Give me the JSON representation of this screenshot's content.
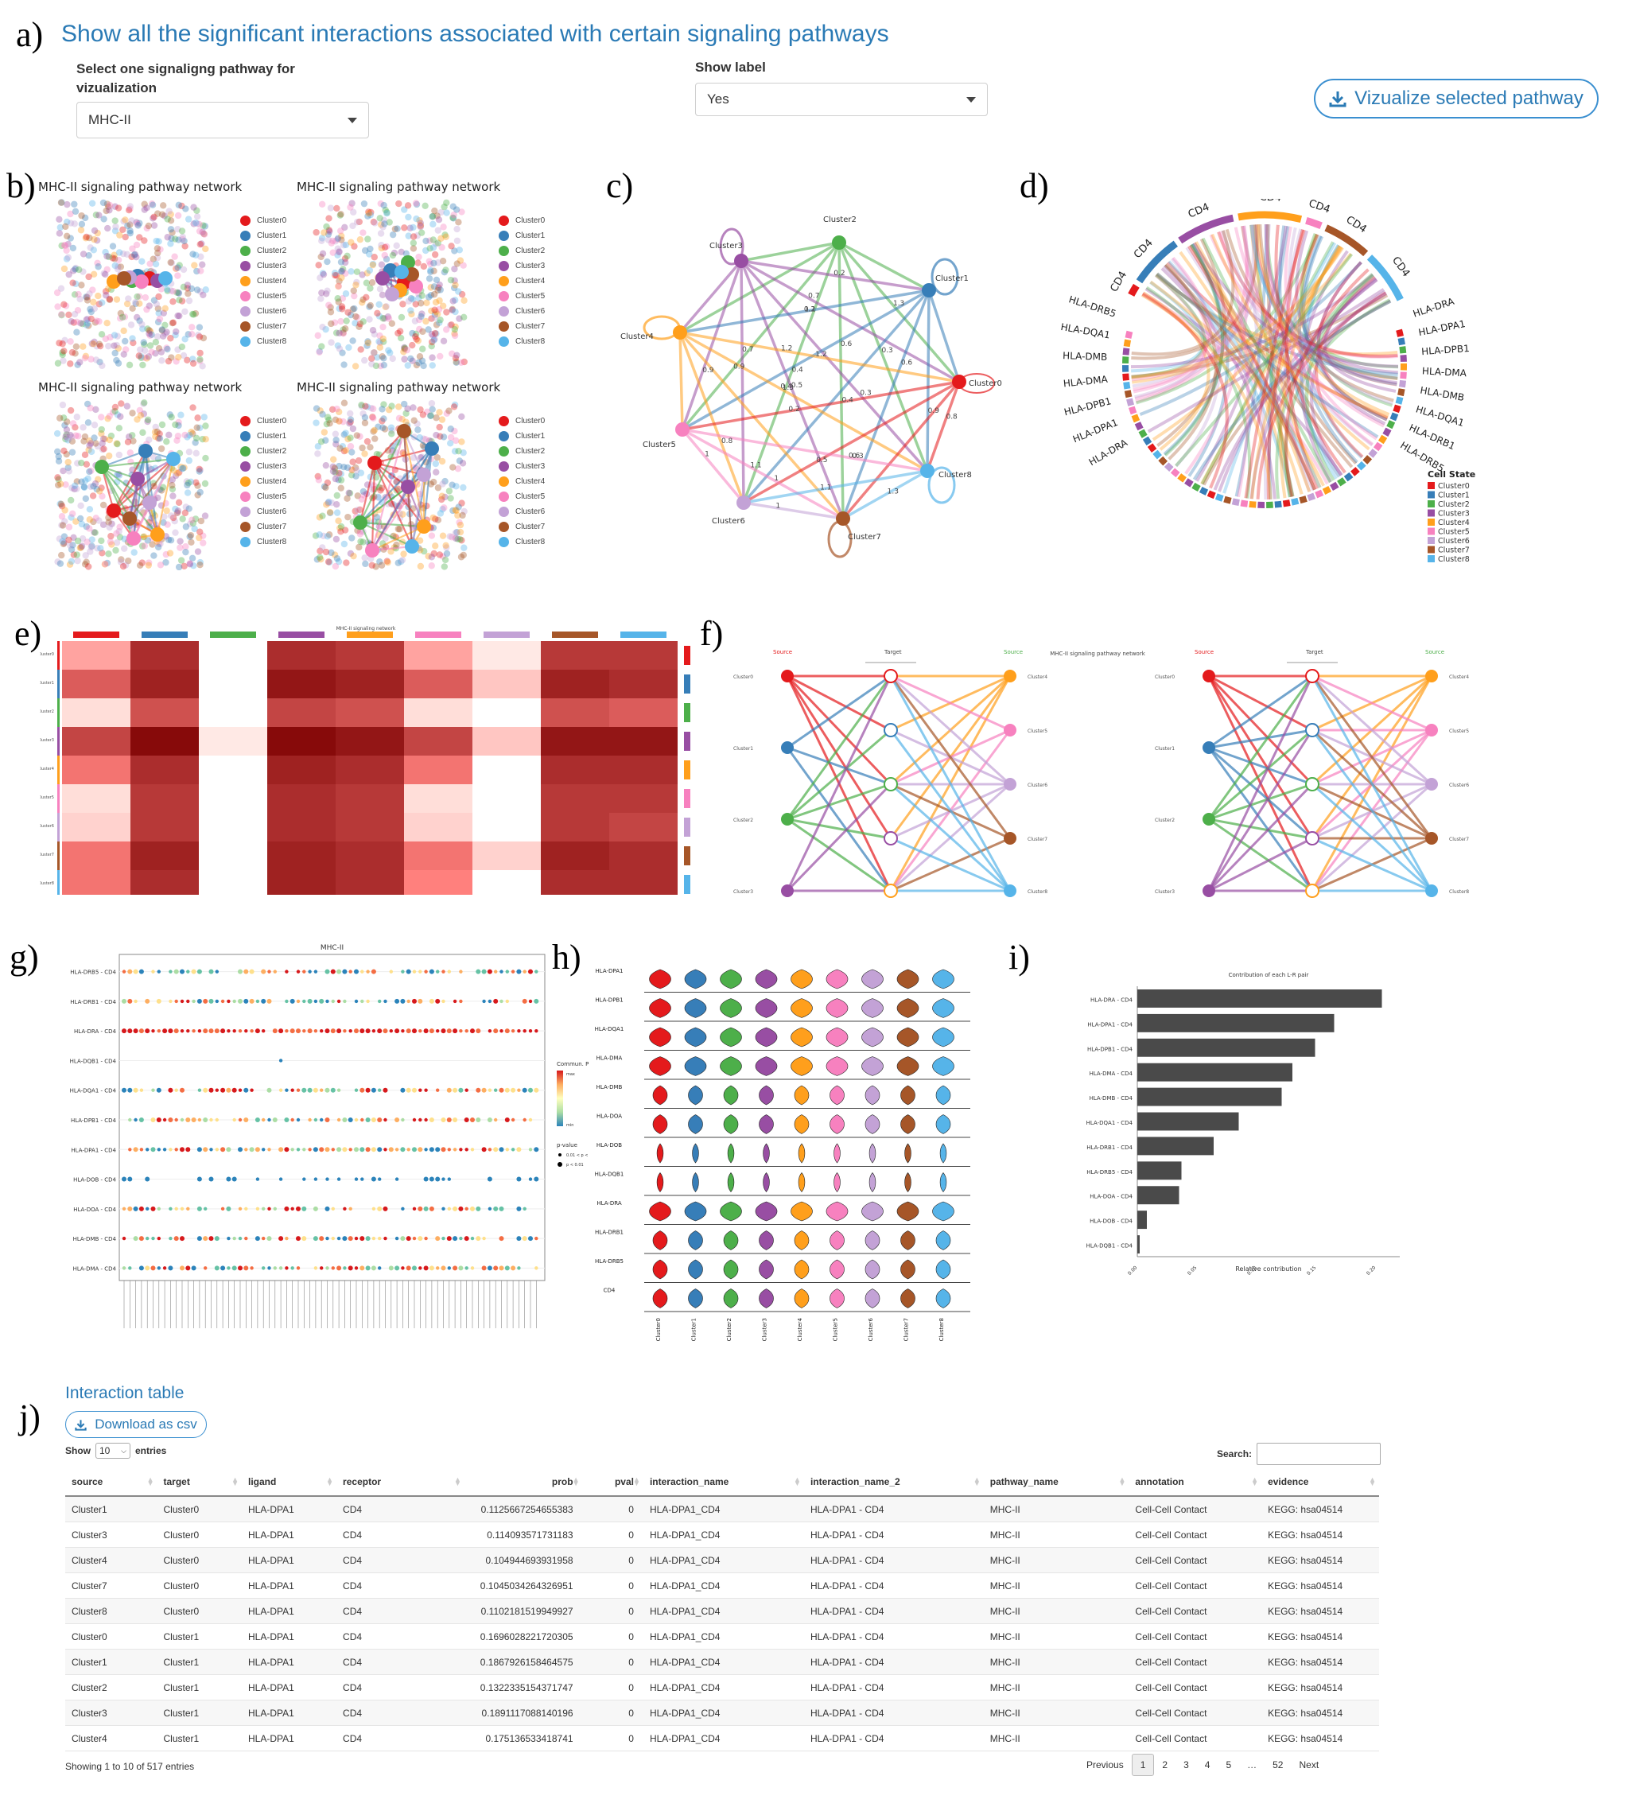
{
  "panel_letters": [
    "a)",
    "b)",
    "c)",
    "d)",
    "e)",
    "f)",
    "g)",
    "h)",
    "i)",
    "j)"
  ],
  "header": {
    "title": "Show all the significant interactions associated with certain signaling pathways",
    "pathway_label": "Select one signaligng pathway for vizualization",
    "pathway_value": "MHC-II",
    "show_label_label": "Show label",
    "show_label_value": "Yes",
    "visualize_button": "Vizualize selected pathway",
    "accent_color": "#2a7ab5"
  },
  "clusters": [
    "Cluster0",
    "Cluster1",
    "Cluster2",
    "Cluster3",
    "Cluster4",
    "Cluster5",
    "Cluster6",
    "Cluster7",
    "Cluster8"
  ],
  "cluster_colors": [
    "#e41a1c",
    "#377eb8",
    "#4daf4a",
    "#984ea3",
    "#ff9f1c",
    "#f781bf",
    "#c3a2d6",
    "#a65628",
    "#56b4e9"
  ],
  "panel_b": {
    "titles": [
      "MHC-II signaling pathway network",
      "MHC-II signaling pathway network",
      "MHC-II signaling pathway network",
      "MHC-II signaling pathway network"
    ]
  },
  "panel_c": {
    "node_labels": [
      "Cluster2",
      "Cluster3",
      "Cluster1",
      "Cluster4",
      "Cluster0",
      "Cluster5",
      "Cluster8",
      "Cluster6",
      "Cluster7"
    ],
    "edge_weight_labels": [
      "0.7",
      "1.3",
      "0.6",
      "1.1",
      "0.9",
      "0.8",
      "1.2",
      "1",
      "0.2",
      "0.3",
      "0.4",
      "0.5"
    ]
  },
  "panel_d": {
    "top_labels": [
      "CD4",
      "CD4",
      "CD4",
      "CD4",
      "CD4",
      "CD4",
      "CD4"
    ],
    "right_labels": [
      "HLA-DRA",
      "HLA-DPA1",
      "HLA-DPB1",
      "HLA-DMA",
      "HLA-DMB",
      "HLA-DQA1",
      "HLA-DRB1",
      "HLA-DRB5"
    ],
    "left_labels": [
      "HLA-DRB5",
      "HLA-DQA1",
      "HLA-DMB",
      "HLA-DMA",
      "HLA-DPB1",
      "HLA-DPA1",
      "HLA-DRA"
    ],
    "legend_title": "Cell State"
  },
  "panel_e": {
    "title": "MHC-II signaling network",
    "chart_data": {
      "type": "heatmap",
      "title": "MHC-II signaling network",
      "rows": [
        "Cluster0",
        "Cluster1",
        "Cluster2",
        "Cluster3",
        "Cluster4",
        "Cluster5",
        "Cluster6",
        "Cluster7",
        "Cluster8"
      ],
      "columns": [
        "Cluster0",
        "Cluster1",
        "Cluster2",
        "Cluster3",
        "Cluster4",
        "Cluster5",
        "Cluster6",
        "Cluster7",
        "Cluster8"
      ],
      "values": [
        [
          0.35,
          0.85,
          0.0,
          0.85,
          0.8,
          0.35,
          0.05,
          0.8,
          0.8
        ],
        [
          0.65,
          0.9,
          0.0,
          0.95,
          0.9,
          0.65,
          0.2,
          0.9,
          0.85
        ],
        [
          0.1,
          0.7,
          0.0,
          0.75,
          0.7,
          0.1,
          0.0,
          0.7,
          0.65
        ],
        [
          0.75,
          1.0,
          0.05,
          1.0,
          0.95,
          0.75,
          0.2,
          0.95,
          0.95
        ],
        [
          0.55,
          0.85,
          0.0,
          0.9,
          0.85,
          0.55,
          0.0,
          0.85,
          0.85
        ],
        [
          0.1,
          0.8,
          0.0,
          0.85,
          0.8,
          0.1,
          0.0,
          0.8,
          0.8
        ],
        [
          0.15,
          0.8,
          0.0,
          0.85,
          0.8,
          0.15,
          0.0,
          0.8,
          0.75
        ],
        [
          0.55,
          0.9,
          0.0,
          0.9,
          0.85,
          0.55,
          0.15,
          0.9,
          0.85
        ],
        [
          0.55,
          0.85,
          0.0,
          0.9,
          0.85,
          0.5,
          0.0,
          0.85,
          0.85
        ]
      ]
    }
  },
  "panel_f": {
    "title": "MHC-II signaling pathway network",
    "header_labels": [
      "Source",
      "Target",
      "Source",
      "Source",
      "Target",
      "Source"
    ],
    "left_clusters": [
      "Cluster0",
      "Cluster1",
      "Cluster2",
      "Cluster3"
    ],
    "right_clusters": [
      "Cluster4",
      "Cluster5",
      "Cluster6",
      "Cluster7",
      "Cluster8"
    ]
  },
  "panel_g": {
    "chart_data": {
      "type": "scatter",
      "title": "MHC-II",
      "y_categories": [
        "HLA-DRB5 - CD4",
        "HLA-DRB1 - CD4",
        "HLA-DRA - CD4",
        "HLA-DQB1 - CD4",
        "HLA-DQA1 - CD4",
        "HLA-DPB1 - CD4",
        "HLA-DPA1 - CD4",
        "HLA-DOB - CD4",
        "HLA-DOA - CD4",
        "HLA-DMB - CD4",
        "HLA-DMA - CD4"
      ],
      "legend_title": "Commun. Prob.",
      "legend_max": "max",
      "legend_min": "min",
      "pvalue_title": "p-value",
      "pvalue_levels": [
        "0.01 < p < 0.05",
        "p < 0.01"
      ]
    }
  },
  "panel_h": {
    "genes": [
      "HLA-DPA1",
      "HLA-DPB1",
      "HLA-DQA1",
      "HLA-DMA",
      "HLA-DMB",
      "HLA-DOA",
      "HLA-DOB",
      "HLA-DQB1",
      "HLA-DRA",
      "HLA-DRB1",
      "HLA-DRB5",
      "CD4"
    ]
  },
  "panel_i": {
    "chart_data": {
      "type": "bar",
      "title": "Contribution of each L-R pair",
      "categories": [
        "HLA-DRA - CD4",
        "HLA-DPA1 - CD4",
        "HLA-DPB1 - CD4",
        "HLA-DMA - CD4",
        "HLA-DMB - CD4",
        "HLA-DQA1 - CD4",
        "HLA-DRB1 - CD4",
        "HLA-DRB5 - CD4",
        "HLA-DOA - CD4",
        "HLA-DOB - CD4",
        "HLA-DQB1 - CD4"
      ],
      "values": [
        0.205,
        0.165,
        0.149,
        0.13,
        0.121,
        0.085,
        0.064,
        0.037,
        0.035,
        0.008,
        0.002
      ],
      "xlabel": "Relative contribution",
      "xticks": [
        "0.00",
        "0.05",
        "0.10",
        "0.15",
        "0.20"
      ],
      "xlim": [
        0,
        0.22
      ],
      "bar_color": "#4a4a4a"
    }
  },
  "table_section": {
    "title": "Interaction table",
    "download_button": "Download as csv",
    "show_label": "Show",
    "page_size": "10",
    "entries_label": "entries",
    "search_label": "Search:",
    "columns": [
      "source",
      "target",
      "ligand",
      "receptor",
      "prob",
      "pval",
      "interaction_name",
      "interaction_name_2",
      "pathway_name",
      "annotation",
      "evidence"
    ],
    "rows": [
      [
        "Cluster1",
        "Cluster0",
        "HLA-DPA1",
        "CD4",
        "0.1125667254655383",
        "0",
        "HLA-DPA1_CD4",
        "HLA-DPA1 - CD4",
        "MHC-II",
        "Cell-Cell Contact",
        "KEGG: hsa04514"
      ],
      [
        "Cluster3",
        "Cluster0",
        "HLA-DPA1",
        "CD4",
        "0.114093571731183",
        "0",
        "HLA-DPA1_CD4",
        "HLA-DPA1 - CD4",
        "MHC-II",
        "Cell-Cell Contact",
        "KEGG: hsa04514"
      ],
      [
        "Cluster4",
        "Cluster0",
        "HLA-DPA1",
        "CD4",
        "0.104944693931958",
        "0",
        "HLA-DPA1_CD4",
        "HLA-DPA1 - CD4",
        "MHC-II",
        "Cell-Cell Contact",
        "KEGG: hsa04514"
      ],
      [
        "Cluster7",
        "Cluster0",
        "HLA-DPA1",
        "CD4",
        "0.1045034264326951",
        "0",
        "HLA-DPA1_CD4",
        "HLA-DPA1 - CD4",
        "MHC-II",
        "Cell-Cell Contact",
        "KEGG: hsa04514"
      ],
      [
        "Cluster8",
        "Cluster0",
        "HLA-DPA1",
        "CD4",
        "0.1102181519949927",
        "0",
        "HLA-DPA1_CD4",
        "HLA-DPA1 - CD4",
        "MHC-II",
        "Cell-Cell Contact",
        "KEGG: hsa04514"
      ],
      [
        "Cluster0",
        "Cluster1",
        "HLA-DPA1",
        "CD4",
        "0.1696028221720305",
        "0",
        "HLA-DPA1_CD4",
        "HLA-DPA1 - CD4",
        "MHC-II",
        "Cell-Cell Contact",
        "KEGG: hsa04514"
      ],
      [
        "Cluster1",
        "Cluster1",
        "HLA-DPA1",
        "CD4",
        "0.1867926158464575",
        "0",
        "HLA-DPA1_CD4",
        "HLA-DPA1 - CD4",
        "MHC-II",
        "Cell-Cell Contact",
        "KEGG: hsa04514"
      ],
      [
        "Cluster2",
        "Cluster1",
        "HLA-DPA1",
        "CD4",
        "0.1322335154371747",
        "0",
        "HLA-DPA1_CD4",
        "HLA-DPA1 - CD4",
        "MHC-II",
        "Cell-Cell Contact",
        "KEGG: hsa04514"
      ],
      [
        "Cluster3",
        "Cluster1",
        "HLA-DPA1",
        "CD4",
        "0.1891117088140196",
        "0",
        "HLA-DPA1_CD4",
        "HLA-DPA1 - CD4",
        "MHC-II",
        "Cell-Cell Contact",
        "KEGG: hsa04514"
      ],
      [
        "Cluster4",
        "Cluster1",
        "HLA-DPA1",
        "CD4",
        "0.175136533418741",
        "0",
        "HLA-DPA1_CD4",
        "HLA-DPA1 - CD4",
        "MHC-II",
        "Cell-Cell Contact",
        "KEGG: hsa04514"
      ]
    ],
    "info": "Showing 1 to 10 of 517 entries",
    "pagination": {
      "previous": "Previous",
      "pages": [
        "1",
        "2",
        "3",
        "4",
        "5",
        "…",
        "52"
      ],
      "next": "Next",
      "current": "1"
    }
  }
}
